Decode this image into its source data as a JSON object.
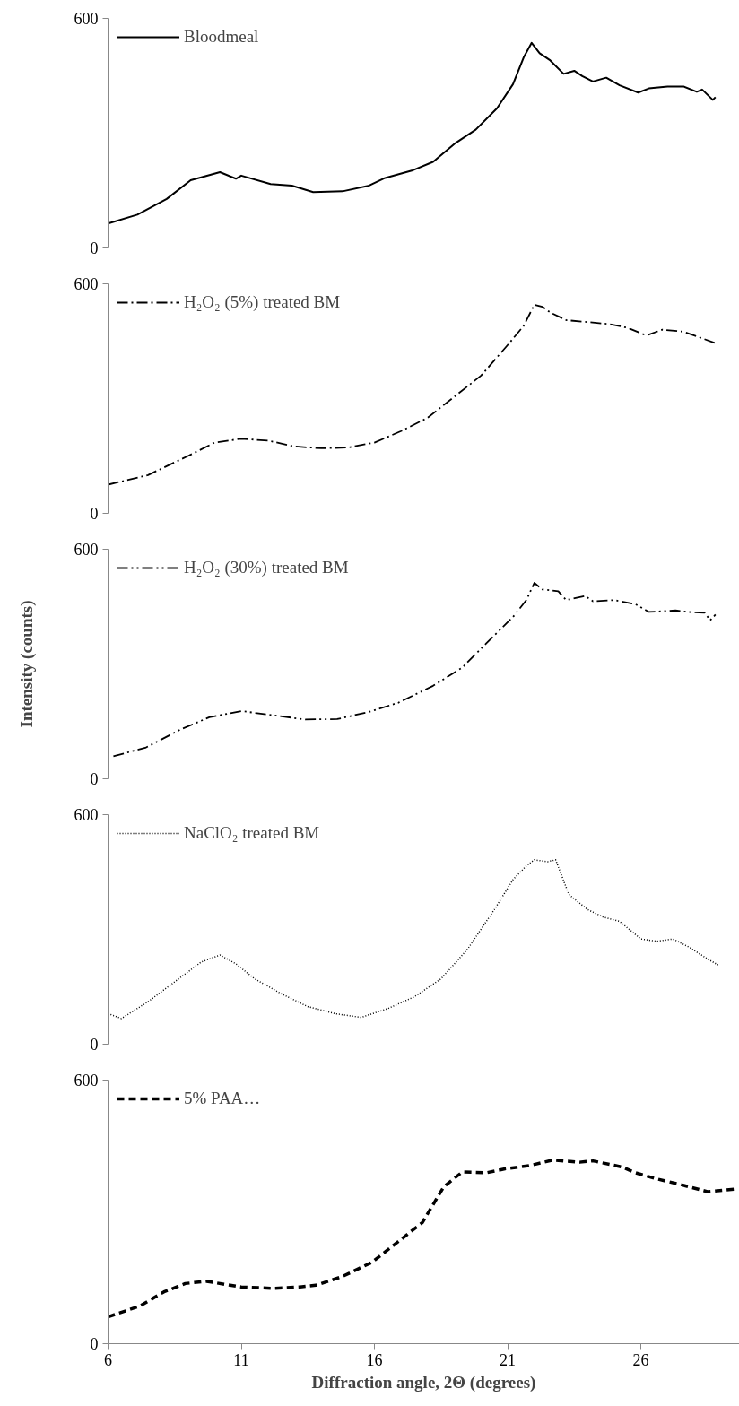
{
  "chart_data": [
    {
      "type": "line",
      "line_style": "solid",
      "legend": "top left",
      "tick_labels": "y",
      "xticks": [
        6,
        11,
        16,
        21,
        26
      ],
      "ylim": [
        0,
        600
      ],
      "yticks": [
        0,
        600
      ],
      "series": [
        {
          "name": "Bloodmeal",
          "color": "#000000",
          "x": [
            6.0,
            7.1,
            8.2,
            9.1,
            10.2,
            10.8,
            11.0,
            12.1,
            12.9,
            13.7,
            14.8,
            15.8,
            16.4,
            17.4,
            18.2,
            19.0,
            19.8,
            20.6,
            21.2,
            21.6,
            21.9,
            22.2,
            22.6,
            23.1,
            23.5,
            23.8,
            24.2,
            24.7,
            25.2,
            25.9,
            26.3,
            27.0,
            27.6,
            28.1,
            28.3,
            28.7,
            28.8
          ],
          "values": [
            64,
            87,
            128,
            177,
            198,
            181,
            189,
            167,
            163,
            146,
            148,
            163,
            183,
            202,
            225,
            272,
            309,
            365,
            428,
            498,
            536,
            509,
            490,
            455,
            463,
            449,
            435,
            445,
            425,
            406,
            417,
            422,
            422,
            408,
            414,
            387,
            394
          ]
        }
      ]
    },
    {
      "type": "line",
      "line_style": "dashdot",
      "legend": "top left",
      "tick_labels": "y",
      "xticks": [
        6,
        11,
        16,
        21,
        26
      ],
      "ylim": [
        0,
        600
      ],
      "yticks": [
        0,
        600
      ],
      "series": [
        {
          "name": "H₂O₂ (5%) treated BM",
          "color": "#000000",
          "x": [
            6.0,
            7.5,
            9.0,
            10.0,
            11.0,
            12.0,
            13.0,
            14.0,
            15.0,
            16.0,
            17.0,
            18.0,
            19.0,
            20.0,
            21.0,
            21.6,
            22.0,
            22.3,
            22.6,
            23.2,
            24.0,
            24.8,
            25.5,
            26.2,
            26.8,
            27.6,
            28.2,
            28.8
          ],
          "values": [
            75,
            100,
            150,
            185,
            195,
            190,
            175,
            170,
            172,
            185,
            215,
            250,
            305,
            360,
            440,
            490,
            545,
            540,
            525,
            505,
            500,
            495,
            485,
            465,
            480,
            475,
            460,
            445
          ]
        }
      ]
    },
    {
      "type": "line",
      "line_style": "dashdotdot",
      "legend": "top left",
      "tick_labels": "y",
      "ylabel": "Intensity (counts)",
      "xticks": [
        6,
        11,
        16,
        21,
        26
      ],
      "ylim": [
        0,
        600
      ],
      "yticks": [
        0,
        600
      ],
      "series": [
        {
          "name": "H₂O₂ (30%) treated BM",
          "color": "#000000",
          "x": [
            6.2,
            7.4,
            8.7,
            9.8,
            11.0,
            12.2,
            13.4,
            14.6,
            15.8,
            16.9,
            18.2,
            19.3,
            20.2,
            21.2,
            21.7,
            22.0,
            22.3,
            22.9,
            23.2,
            23.9,
            24.2,
            25.0,
            25.8,
            26.3,
            27.3,
            27.8,
            28.4,
            28.6,
            28.8
          ],
          "values": [
            59,
            81,
            128,
            161,
            177,
            166,
            155,
            156,
            175,
            199,
            243,
            291,
            354,
            423,
            467,
            512,
            495,
            490,
            467,
            478,
            464,
            467,
            456,
            436,
            440,
            436,
            434,
            414,
            429
          ]
        }
      ]
    },
    {
      "type": "line",
      "line_style": "dotted",
      "legend": "top left",
      "tick_labels": "y",
      "xticks": [
        6,
        11,
        16,
        21,
        26
      ],
      "ylim": [
        0,
        600
      ],
      "yticks": [
        0,
        600
      ],
      "series": [
        {
          "name": "NaClO₂ treated BM",
          "color": "#000000",
          "x": [
            6.0,
            6.5,
            7.5,
            8.5,
            9.5,
            10.2,
            10.8,
            11.5,
            12.5,
            13.5,
            14.5,
            15.5,
            16.5,
            17.5,
            18.5,
            19.5,
            20.5,
            21.2,
            21.7,
            22.0,
            22.5,
            22.8,
            23.3,
            24.0,
            24.6,
            25.2,
            26.0,
            26.6,
            27.2,
            27.8,
            28.5,
            28.9
          ],
          "values": [
            80,
            67,
            111,
            163,
            215,
            233,
            210,
            171,
            132,
            98,
            80,
            70,
            93,
            124,
            171,
            249,
            352,
            430,
            466,
            482,
            477,
            482,
            391,
            352,
            332,
            321,
            275,
            269,
            275,
            254,
            223,
            207
          ]
        }
      ]
    },
    {
      "type": "line",
      "line_style": "dashed",
      "legend": "top left",
      "xlabel": "Diffraction angle, 2Θ (degrees)",
      "xlim": [
        6,
        29.7
      ],
      "xticks": [
        6,
        11,
        16,
        21,
        26
      ],
      "ylim": [
        0,
        600
      ],
      "yticks": [
        0,
        600
      ],
      "series": [
        {
          "name": "5% PAA…",
          "color": "#000000",
          "x": [
            6.0,
            7.2,
            8.1,
            8.9,
            9.7,
            11.0,
            12.2,
            13.2,
            13.8,
            14.8,
            15.9,
            16.7,
            17.8,
            18.6,
            19.3,
            20.2,
            20.9,
            21.8,
            22.7,
            23.7,
            24.2,
            25.3,
            25.8,
            26.6,
            27.5,
            28.5,
            29.6
          ],
          "values": [
            61,
            86,
            118,
            137,
            142,
            129,
            126,
            129,
            133,
            153,
            185,
            223,
            276,
            357,
            391,
            389,
            398,
            405,
            418,
            413,
            416,
            402,
            389,
            375,
            362,
            346,
            352
          ]
        }
      ]
    }
  ]
}
